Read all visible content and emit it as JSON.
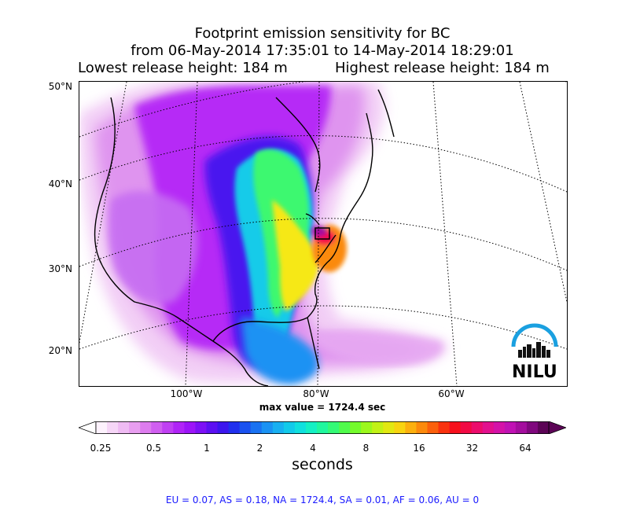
{
  "title": {
    "line1": "Footprint emission sensitivity for BC",
    "line2": "from 06-May-2014 17:35:01 to 14-May-2014 18:29:01",
    "lowest_release": "Lowest release height: 184 m",
    "highest_release": "Highest release height: 184 m"
  },
  "map": {
    "lat_labels": [
      "50°N",
      "40°N",
      "30°N",
      "20°N"
    ],
    "lon_labels": [
      "100°W",
      "80°W",
      "60°W"
    ],
    "max_value_text": "max value = 1724.4 sec",
    "logo_text": "NILU"
  },
  "colorbar": {
    "tick_labels": [
      "0.25",
      "0.5",
      "1",
      "2",
      "4",
      "8",
      "16",
      "32",
      "64"
    ],
    "unit": "seconds",
    "colors": [
      "#fdf2fd",
      "#f6d6f7",
      "#efbbf3",
      "#e89ef0",
      "#dd7cee",
      "#d05ff0",
      "#c040f3",
      "#b024f7",
      "#9c14f8",
      "#7d10f6",
      "#5c10f2",
      "#3c16ee",
      "#2030ee",
      "#1a52f0",
      "#1972f2",
      "#1a92f3",
      "#18b0f1",
      "#12caea",
      "#10e0de",
      "#14f0c4",
      "#20f79e",
      "#34fa76",
      "#50fb4c",
      "#74fb2c",
      "#9cf81c",
      "#c2f216",
      "#e2e812",
      "#f8d410",
      "#fcb00e",
      "#fc8a0c",
      "#fb600c",
      "#f9320e",
      "#f7101c",
      "#f20a44",
      "#ec0c6c",
      "#e2108e",
      "#d412a8",
      "#c012b4",
      "#a40e9e",
      "#80087e",
      "#5c0456"
    ],
    "under_color": "#ffffff",
    "over_color": "#5c0456"
  },
  "footer": {
    "stats": "EU = 0.07,  AS = 0.18,  NA = 1724.4,  SA = 0.01,  AF = 0.06,  AU = 0"
  },
  "colors": {
    "footer_text": "#1a1aff",
    "logo_arc": "#1aa0e0",
    "logo_dark": "#111111"
  }
}
